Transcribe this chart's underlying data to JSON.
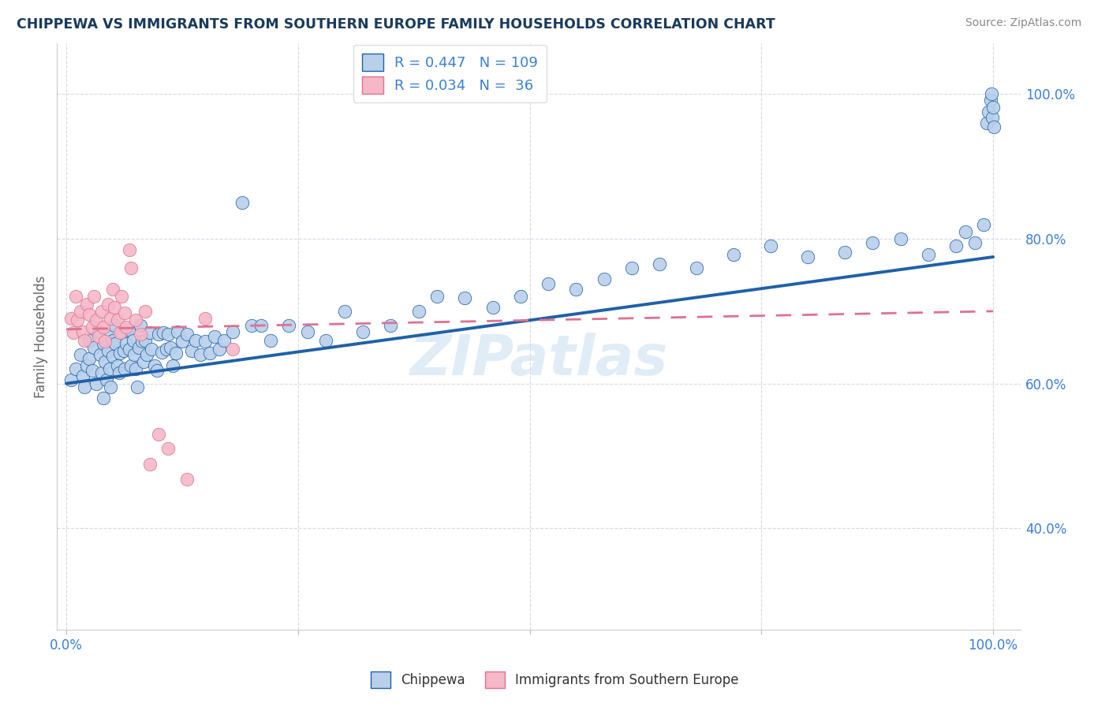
{
  "title": "CHIPPEWA VS IMMIGRANTS FROM SOUTHERN EUROPE FAMILY HOUSEHOLDS CORRELATION CHART",
  "source": "Source: ZipAtlas.com",
  "ylabel": "Family Households",
  "xlim": [
    -0.01,
    1.03
  ],
  "ylim": [
    0.26,
    1.07
  ],
  "yticks": [
    0.4,
    0.6,
    0.8,
    1.0
  ],
  "ytick_labels": [
    "40.0%",
    "60.0%",
    "80.0%",
    "100.0%"
  ],
  "xticks": [
    0.0,
    0.25,
    0.5,
    0.75,
    1.0
  ],
  "xtick_labels": [
    "0.0%",
    "",
    "",
    "",
    "100.0%"
  ],
  "blue_R": 0.447,
  "blue_N": 109,
  "pink_R": 0.034,
  "pink_N": 36,
  "blue_color": "#b8d0ea",
  "pink_color": "#f4b8c8",
  "blue_line_color": "#2060a8",
  "pink_line_color": "#e07090",
  "title_color": "#1a3a5c",
  "axis_label_color": "#666666",
  "tick_color": "#3a7fd5",
  "grid_color": "#d8d8e8",
  "watermark_text": "ZIPatlas",
  "legend_blue_label": "Chippewa",
  "legend_pink_label": "Immigrants from Southern Europe",
  "blue_scatter_x": [
    0.005,
    0.01,
    0.015,
    0.018,
    0.02,
    0.022,
    0.025,
    0.025,
    0.028,
    0.03,
    0.032,
    0.035,
    0.037,
    0.038,
    0.04,
    0.04,
    0.042,
    0.043,
    0.045,
    0.045,
    0.047,
    0.048,
    0.05,
    0.05,
    0.052,
    0.053,
    0.055,
    0.057,
    0.058,
    0.06,
    0.062,
    0.063,
    0.065,
    0.067,
    0.068,
    0.07,
    0.072,
    0.073,
    0.075,
    0.077,
    0.078,
    0.08,
    0.082,
    0.083,
    0.085,
    0.087,
    0.09,
    0.092,
    0.095,
    0.098,
    0.1,
    0.103,
    0.105,
    0.108,
    0.11,
    0.112,
    0.115,
    0.118,
    0.12,
    0.125,
    0.13,
    0.135,
    0.14,
    0.145,
    0.15,
    0.155,
    0.16,
    0.165,
    0.17,
    0.18,
    0.19,
    0.2,
    0.21,
    0.22,
    0.24,
    0.26,
    0.28,
    0.3,
    0.32,
    0.35,
    0.38,
    0.4,
    0.43,
    0.46,
    0.49,
    0.52,
    0.55,
    0.58,
    0.61,
    0.64,
    0.68,
    0.72,
    0.76,
    0.8,
    0.84,
    0.87,
    0.9,
    0.93,
    0.96,
    0.97,
    0.98,
    0.99,
    0.993,
    0.995,
    0.997,
    0.998,
    0.999,
    1.0,
    1.001
  ],
  "blue_scatter_y": [
    0.605,
    0.62,
    0.64,
    0.61,
    0.595,
    0.625,
    0.66,
    0.635,
    0.618,
    0.65,
    0.6,
    0.672,
    0.64,
    0.615,
    0.58,
    0.655,
    0.63,
    0.605,
    0.668,
    0.645,
    0.62,
    0.595,
    0.66,
    0.638,
    0.68,
    0.655,
    0.625,
    0.615,
    0.642,
    0.67,
    0.645,
    0.62,
    0.655,
    0.675,
    0.648,
    0.625,
    0.66,
    0.64,
    0.62,
    0.595,
    0.65,
    0.68,
    0.658,
    0.63,
    0.66,
    0.64,
    0.67,
    0.648,
    0.625,
    0.618,
    0.668,
    0.643,
    0.67,
    0.648,
    0.668,
    0.65,
    0.625,
    0.642,
    0.672,
    0.658,
    0.668,
    0.645,
    0.66,
    0.64,
    0.658,
    0.642,
    0.665,
    0.648,
    0.66,
    0.672,
    0.85,
    0.68,
    0.68,
    0.66,
    0.68,
    0.672,
    0.66,
    0.7,
    0.672,
    0.68,
    0.7,
    0.72,
    0.718,
    0.705,
    0.72,
    0.738,
    0.73,
    0.745,
    0.76,
    0.765,
    0.76,
    0.778,
    0.79,
    0.775,
    0.782,
    0.795,
    0.8,
    0.778,
    0.79,
    0.81,
    0.795,
    0.82,
    0.96,
    0.975,
    0.992,
    1.0,
    0.968,
    0.982,
    0.955
  ],
  "pink_scatter_x": [
    0.005,
    0.008,
    0.01,
    0.012,
    0.015,
    0.018,
    0.02,
    0.022,
    0.025,
    0.028,
    0.03,
    0.032,
    0.035,
    0.038,
    0.04,
    0.042,
    0.045,
    0.048,
    0.05,
    0.052,
    0.055,
    0.058,
    0.06,
    0.063,
    0.065,
    0.068,
    0.07,
    0.075,
    0.08,
    0.085,
    0.09,
    0.1,
    0.11,
    0.13,
    0.15,
    0.18
  ],
  "pink_scatter_y": [
    0.69,
    0.67,
    0.72,
    0.688,
    0.7,
    0.672,
    0.66,
    0.71,
    0.695,
    0.678,
    0.72,
    0.688,
    0.665,
    0.7,
    0.678,
    0.658,
    0.71,
    0.69,
    0.73,
    0.705,
    0.688,
    0.67,
    0.72,
    0.698,
    0.678,
    0.785,
    0.76,
    0.688,
    0.668,
    0.7,
    0.488,
    0.53,
    0.51,
    0.468,
    0.69,
    0.648
  ],
  "blue_trend_x": [
    0.0,
    1.0
  ],
  "blue_trend_y": [
    0.6,
    0.775
  ],
  "pink_trend_x": [
    0.0,
    1.0
  ],
  "pink_trend_y": [
    0.675,
    0.7
  ]
}
